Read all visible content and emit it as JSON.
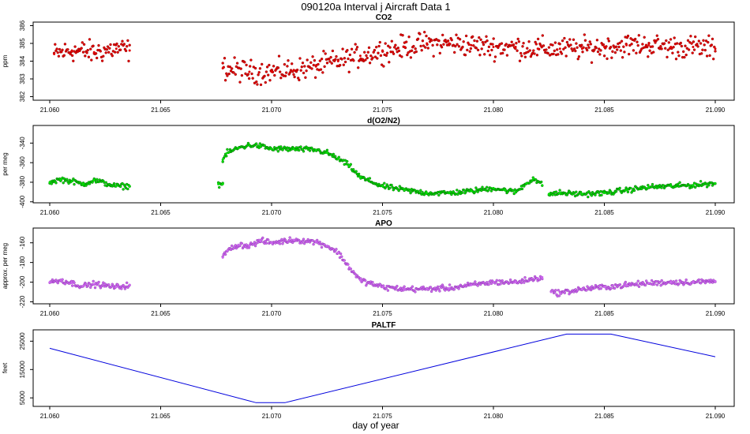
{
  "figure": {
    "title": "090120a   Interval j Aircraft Data 1",
    "xlabel": "day of year",
    "xlim": [
      21.06,
      21.09
    ],
    "xticks": [
      "21.060",
      "21.065",
      "21.070",
      "21.075",
      "21.080",
      "21.085",
      "21.090"
    ]
  },
  "chart_data": [
    {
      "type": "scatter",
      "title": "CO2",
      "ylabel": "ppm",
      "ylim": [
        381.8,
        386.2
      ],
      "yticks": [
        "382",
        "383",
        "384",
        "385",
        "386"
      ],
      "color": "#e00000",
      "series": [
        {
          "name": "CO2",
          "segments": [
            {
              "x": [
                21.0602,
                21.061,
                21.062,
                21.063,
                21.0636
              ],
              "y": [
                384.4,
                384.6,
                384.5,
                384.7,
                384.6
              ]
            },
            {
              "x": [
                21.0678,
                21.069,
                21.07,
                21.071,
                21.072,
                21.073,
                21.074,
                21.075,
                21.076,
                21.077,
                21.078,
                21.079,
                21.08,
                21.081,
                21.082,
                21.083,
                21.084,
                21.085,
                21.086,
                21.087,
                21.088,
                21.089,
                21.09
              ],
              "y": [
                383.6,
                383.4,
                383.4,
                383.5,
                383.7,
                384.0,
                384.3,
                384.6,
                384.8,
                385.0,
                385.0,
                384.9,
                384.8,
                384.8,
                384.7,
                384.7,
                384.7,
                384.8,
                384.9,
                384.9,
                384.8,
                384.8,
                384.7
              ]
            }
          ]
        }
      ]
    },
    {
      "type": "scatter",
      "title": "d(O2/N2)",
      "ylabel": "per meg",
      "ylim": [
        -401,
        -322
      ],
      "yticks": [
        "-340",
        "-360",
        "-380",
        "-400"
      ],
      "color": "#00dd00",
      "series": [
        {
          "name": "d(O2/N2)",
          "segments": [
            {
              "x": [
                21.06,
                21.0605,
                21.061,
                21.0615,
                21.062,
                21.063,
                21.0636
              ],
              "y": [
                -380,
                -377,
                -379,
                -382,
                -378,
                -384,
                -384
              ]
            },
            {
              "x": [
                21.0676,
                21.0678
              ],
              "y": [
                -382,
                -382
              ]
            },
            {
              "x": [
                21.0678,
                21.068,
                21.0685,
                21.069,
                21.0695,
                21.07,
                21.071,
                21.072,
                21.0725,
                21.073,
                21.0735,
                21.074,
                21.075,
                21.076,
                21.077,
                21.078,
                21.079,
                21.08,
                21.0805,
                21.081,
                21.0815,
                21.0818,
                21.0822
              ],
              "y": [
                -357,
                -350,
                -345,
                -342,
                -343,
                -346,
                -346,
                -347,
                -350,
                -356,
                -363,
                -375,
                -384,
                -388,
                -391,
                -391,
                -389,
                -386,
                -388,
                -390,
                -381,
                -376,
                -383
              ]
            },
            {
              "x": [
                21.0825,
                21.083,
                21.084,
                21.085,
                21.086,
                21.087,
                21.088,
                21.089,
                21.09
              ],
              "y": [
                -392,
                -391,
                -392,
                -391,
                -388,
                -385,
                -384,
                -383,
                -381
              ]
            }
          ]
        }
      ]
    },
    {
      "type": "scatter",
      "title": "APO",
      "ylabel": "approx. per meg",
      "ylim": [
        -222,
        -145
      ],
      "yticks": [
        "-160",
        "-180",
        "-200",
        "-220"
      ],
      "color": "#cc66ee",
      "series": [
        {
          "name": "APO",
          "segments": [
            {
              "x": [
                21.06,
                21.0605,
                21.061,
                21.0615,
                21.062,
                21.063,
                21.0636
              ],
              "y": [
                -200,
                -198,
                -201,
                -204,
                -202,
                -205,
                -203
              ]
            },
            {
              "x": [
                21.0678,
                21.068,
                21.0685,
                21.069,
                21.0695,
                21.07,
                21.071,
                21.072,
                21.0725,
                21.073,
                21.0735,
                21.074,
                21.075,
                21.076,
                21.077,
                21.078,
                21.079,
                21.08,
                21.081,
                21.082,
                21.0822
              ],
              "y": [
                -175,
                -168,
                -162,
                -163,
                -158,
                -160,
                -157,
                -159,
                -163,
                -170,
                -185,
                -198,
                -205,
                -207,
                -207,
                -206,
                -203,
                -200,
                -200,
                -196,
                -195
              ]
            },
            {
              "x": [
                21.0826,
                21.083,
                21.084,
                21.085,
                21.086,
                21.087,
                21.088,
                21.089,
                21.09
              ],
              "y": [
                -210,
                -211,
                -207,
                -205,
                -203,
                -201,
                -200,
                -200,
                -199
              ]
            }
          ]
        }
      ]
    },
    {
      "type": "line",
      "title": "PALTF",
      "ylabel": "feet",
      "ylim": [
        2000,
        29000
      ],
      "yticks": [
        "5000",
        "15000",
        "25000"
      ],
      "color": "#0000dd",
      "series": [
        {
          "name": "PALTF",
          "segments": [
            {
              "x": [
                21.06,
                21.0693,
                21.0706,
                21.0833,
                21.0853,
                21.09
              ],
              "y": [
                22500,
                3300,
                3300,
                27500,
                27500,
                19500
              ]
            }
          ]
        }
      ]
    }
  ]
}
